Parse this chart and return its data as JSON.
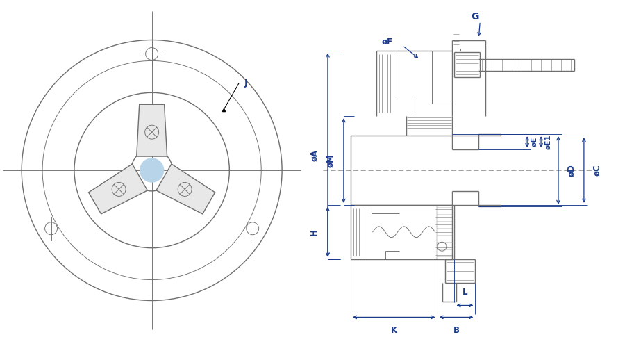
{
  "background": "#ffffff",
  "line_color": "#6e6e6e",
  "dim_color": "#1a3a8c",
  "lw": 1.0,
  "tlw": 0.65,
  "labels": {
    "J": "J",
    "A": "øA",
    "M": "øM",
    "E": "øE",
    "E1": "øE1",
    "D": "øD",
    "C": "øC",
    "F": "øF",
    "G": "G",
    "H": "H",
    "K": "K",
    "B": "B",
    "L": "L"
  }
}
